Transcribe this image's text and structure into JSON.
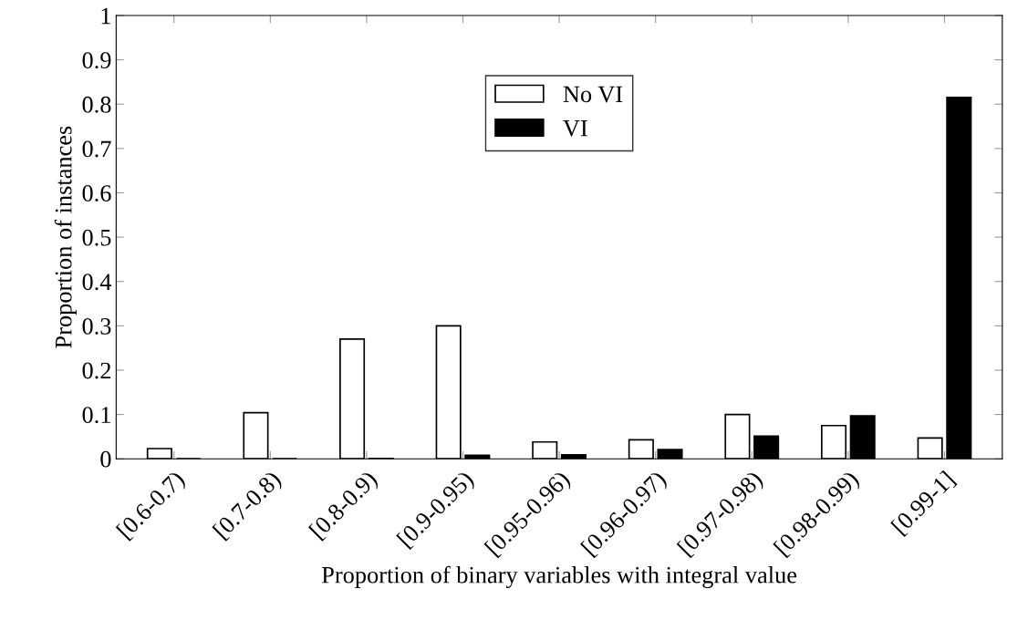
{
  "chart_data": {
    "type": "bar",
    "xlabel": "Proportion of binary variables with integral value",
    "ylabel": "Proportion of instances",
    "categories": [
      "[0.6-0.7)",
      "[0.7-0.8)",
      "[0.8-0.9)",
      "[0.9-0.95)",
      "[0.95-0.96)",
      "[0.96-0.97)",
      "[0.97-0.98)",
      "[0.98-0.99)",
      "[0.99-1]"
    ],
    "series": [
      {
        "name": "No VI",
        "color": "#ffffff",
        "values": [
          0.023,
          0.104,
          0.27,
          0.3,
          0.038,
          0.043,
          0.1,
          0.075,
          0.047
        ]
      },
      {
        "name": "VI",
        "color": "#000000",
        "values": [
          0.0,
          0.0,
          0.001,
          0.008,
          0.009,
          0.021,
          0.051,
          0.097,
          0.815
        ]
      }
    ],
    "ylim": [
      0,
      1
    ],
    "yticks": [
      0,
      0.1,
      0.2,
      0.3,
      0.4,
      0.5,
      0.6,
      0.7,
      0.8,
      0.9,
      1
    ],
    "grid": false,
    "legend": "top"
  }
}
